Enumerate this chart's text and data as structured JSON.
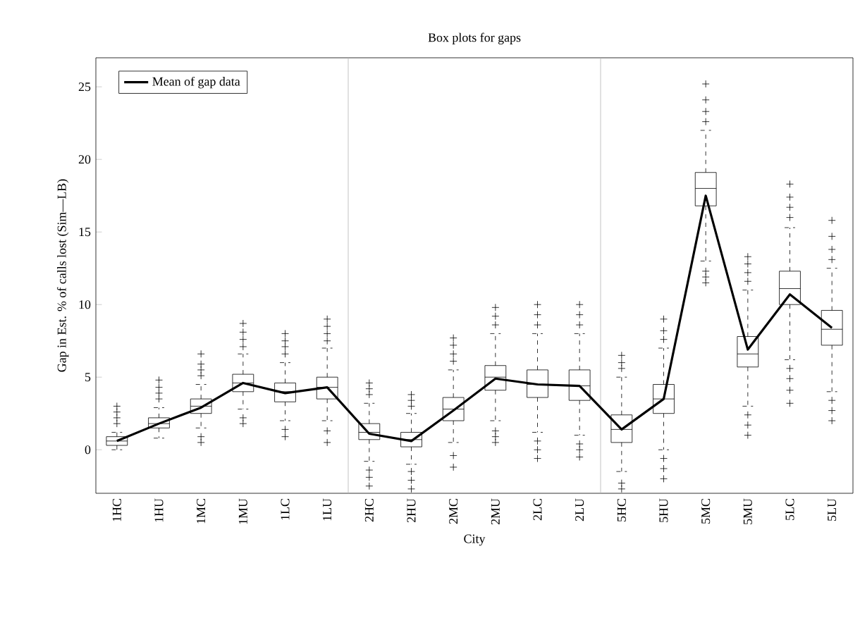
{
  "chart_data": {
    "type": "box",
    "title": "Box plots for gaps",
    "xlabel": "City",
    "ylabel": "Gap in Est. % of calls lost (Sim—LB)",
    "categories": [
      "1HC",
      "1HU",
      "1MC",
      "1MU",
      "1LC",
      "1LU",
      "2HC",
      "2HU",
      "2MC",
      "2MU",
      "2LC",
      "2LU",
      "5HC",
      "5HU",
      "5MC",
      "5MU",
      "5LC",
      "5LU"
    ],
    "ylim": [
      -3,
      27
    ],
    "yticks": [
      0,
      5,
      10,
      15,
      20,
      25
    ],
    "legend": "top left",
    "boxes": [
      {
        "low": 0,
        "q1": 0.3,
        "median": 0.6,
        "q3": 0.9,
        "high": 1.2,
        "outliers": [
          1.8,
          2.2,
          2.6,
          3.0
        ]
      },
      {
        "low": 0.8,
        "q1": 1.5,
        "median": 1.8,
        "q3": 2.2,
        "high": 2.9,
        "outliers": [
          3.5,
          3.9,
          4.3,
          4.8
        ]
      },
      {
        "low": 1.5,
        "q1": 2.5,
        "median": 3.0,
        "q3": 3.5,
        "high": 4.5,
        "outliers": [
          0.5,
          0.9,
          5.1,
          5.5,
          5.9,
          6.6
        ]
      },
      {
        "low": 2.8,
        "q1": 4.0,
        "median": 4.6,
        "q3": 5.2,
        "high": 6.6,
        "outliers": [
          1.8,
          2.2,
          7.1,
          7.6,
          8.1,
          8.7
        ]
      },
      {
        "low": 2.0,
        "q1": 3.3,
        "median": 4.0,
        "q3": 4.6,
        "high": 6.0,
        "outliers": [
          0.9,
          1.4,
          6.6,
          7.1,
          7.5,
          8.0
        ]
      },
      {
        "low": 2.0,
        "q1": 3.5,
        "median": 4.3,
        "q3": 5.0,
        "high": 7.0,
        "outliers": [
          0.5,
          1.3,
          7.5,
          8.0,
          8.5,
          9.0
        ]
      },
      {
        "low": -0.8,
        "q1": 0.7,
        "median": 1.2,
        "q3": 1.8,
        "high": 3.2,
        "outliers": [
          -2.5,
          -1.9,
          -1.4,
          3.8,
          4.2,
          4.6
        ]
      },
      {
        "low": -1.0,
        "q1": 0.2,
        "median": 0.7,
        "q3": 1.2,
        "high": 2.5,
        "outliers": [
          -2.7,
          -2.1,
          -1.5,
          3.0,
          3.4,
          3.8
        ]
      },
      {
        "low": 0.5,
        "q1": 2.0,
        "median": 2.8,
        "q3": 3.6,
        "high": 5.5,
        "outliers": [
          -1.2,
          -0.4,
          6.1,
          6.6,
          7.2,
          7.7
        ]
      },
      {
        "low": 2.0,
        "q1": 4.1,
        "median": 5.0,
        "q3": 5.8,
        "high": 8.0,
        "outliers": [
          0.5,
          0.9,
          1.3,
          8.6,
          9.2,
          9.8
        ]
      },
      {
        "low": 1.2,
        "q1": 3.6,
        "median": 4.5,
        "q3": 5.5,
        "high": 8.0,
        "outliers": [
          -0.6,
          0.0,
          0.6,
          8.6,
          9.3,
          10.0
        ]
      },
      {
        "low": 1.0,
        "q1": 3.4,
        "median": 4.4,
        "q3": 5.5,
        "high": 8.0,
        "outliers": [
          -0.5,
          0.0,
          0.4,
          8.6,
          9.3,
          10.0
        ]
      },
      {
        "low": -1.5,
        "q1": 0.5,
        "median": 1.4,
        "q3": 2.4,
        "high": 5.0,
        "outliers": [
          -2.7,
          -2.3,
          5.6,
          6.0,
          6.5
        ]
      },
      {
        "low": 0.0,
        "q1": 2.5,
        "median": 3.5,
        "q3": 4.5,
        "high": 7.0,
        "outliers": [
          -2.0,
          -1.3,
          -0.6,
          7.6,
          8.2,
          9.0
        ]
      },
      {
        "low": 13.0,
        "q1": 16.8,
        "median": 18.0,
        "q3": 19.1,
        "high": 22.0,
        "outliers": [
          11.5,
          11.9,
          12.3,
          22.6,
          23.3,
          24.1,
          25.2
        ]
      },
      {
        "low": 3.0,
        "q1": 5.7,
        "median": 6.6,
        "q3": 7.8,
        "high": 11.0,
        "outliers": [
          1.0,
          1.7,
          2.4,
          11.6,
          12.2,
          12.8,
          13.3
        ]
      },
      {
        "low": 6.2,
        "q1": 10.0,
        "median": 11.1,
        "q3": 12.3,
        "high": 15.3,
        "outliers": [
          3.2,
          4.1,
          4.9,
          5.6,
          16.0,
          16.7,
          17.4,
          18.3
        ]
      },
      {
        "low": 4.0,
        "q1": 7.2,
        "median": 8.3,
        "q3": 9.6,
        "high": 12.5,
        "outliers": [
          2.0,
          2.7,
          3.4,
          13.1,
          13.8,
          14.7,
          15.8
        ]
      }
    ],
    "series": [
      {
        "name": "Mean of gap data",
        "type": "line",
        "color": "#000000",
        "values": [
          0.6,
          1.8,
          2.9,
          4.6,
          3.9,
          4.3,
          1.1,
          0.6,
          2.7,
          4.9,
          4.5,
          4.4,
          1.4,
          3.5,
          17.5,
          6.9,
          10.7,
          8.4
        ]
      }
    ]
  }
}
